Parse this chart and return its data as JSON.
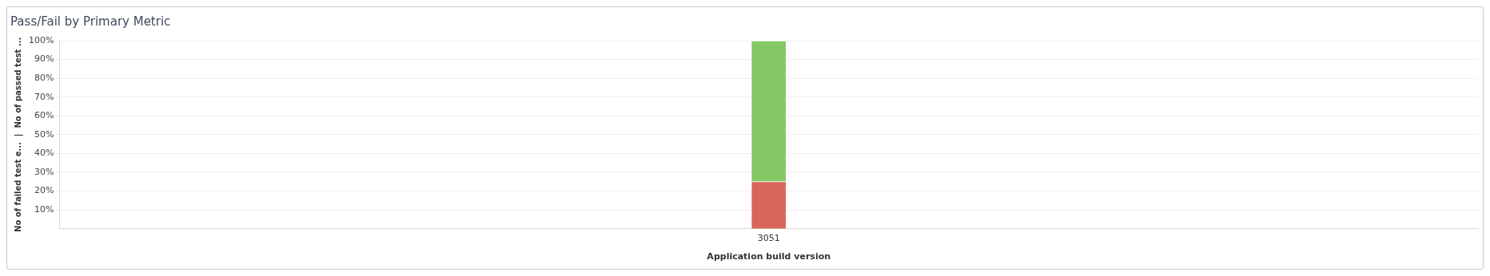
{
  "chart_data": {
    "type": "bar",
    "title": "Pass/Fail by Primary Metric",
    "xlabel": "Application build version",
    "ylabel": "No of failed test e...  |  No of passed test ...",
    "categories": [
      "3051"
    ],
    "series": [
      {
        "color": "#d9665b",
        "values": [
          25
        ]
      },
      {
        "color": "#85c966",
        "values": [
          75
        ]
      }
    ],
    "stacked": true,
    "ylim": [
      0,
      100
    ],
    "yticks": [
      {
        "value": 10,
        "label": "10%"
      },
      {
        "value": 20,
        "label": "20%"
      },
      {
        "value": 30,
        "label": "30%"
      },
      {
        "value": 40,
        "label": "40%"
      },
      {
        "value": 50,
        "label": "50%"
      },
      {
        "value": 60,
        "label": "60%"
      },
      {
        "value": 70,
        "label": "70%"
      },
      {
        "value": 80,
        "label": "80%"
      },
      {
        "value": 90,
        "label": "90%"
      },
      {
        "value": 100,
        "label": "100%"
      }
    ],
    "grid": "y",
    "legend": false
  }
}
